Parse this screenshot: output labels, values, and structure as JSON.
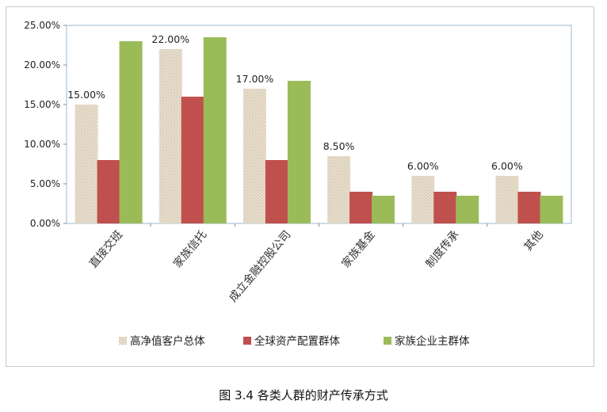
{
  "caption": "图 3.4  各类人群的财产传承方式",
  "chart_data": {
    "type": "bar",
    "categories": [
      "直接交班",
      "家族信托",
      "成立金融控股公司",
      "家族基金",
      "制度传承",
      "其他"
    ],
    "series": [
      {
        "name": "高净值客户总体",
        "values": [
          15.0,
          22.0,
          17.0,
          8.5,
          6.0,
          6.0
        ],
        "color": "#ddd0be"
      },
      {
        "name": "全球资产配置群体",
        "values": [
          8.0,
          16.0,
          8.0,
          4.0,
          4.0,
          4.0
        ],
        "color": "#c0504d"
      },
      {
        "name": "家族企业主群体",
        "values": [
          23.0,
          23.5,
          18.0,
          3.5,
          3.5,
          3.5
        ],
        "color": "#9bbb59"
      }
    ],
    "data_labels": [
      "15.00%",
      "22.00%",
      "17.00%",
      "8.50%",
      "6.00%",
      "6.00%"
    ],
    "y_ticks": [
      "0.00%",
      "5.00%",
      "10.00%",
      "15.00%",
      "20.00%",
      "25.00%"
    ],
    "ylim": [
      0,
      25
    ],
    "grid": false,
    "legend_position": "bottom"
  }
}
